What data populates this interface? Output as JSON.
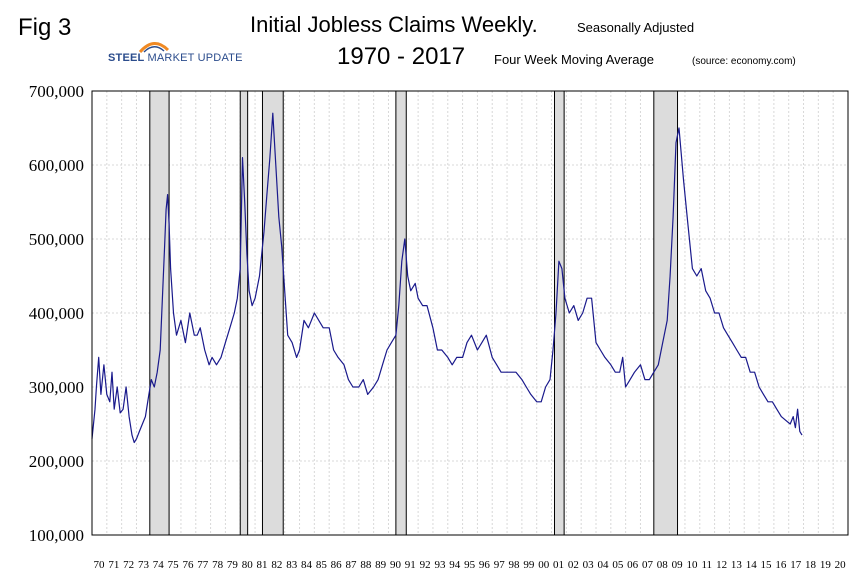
{
  "header": {
    "fig_label": "Fig 3",
    "title": "Initial Jobless Claims Weekly.",
    "title_note": "Seasonally Adjusted",
    "years": "1970 - 2017",
    "subtitle": "Four Week Moving Average",
    "source": "(source: economy.com)",
    "logo": {
      "text_bold": "STEEL",
      "text_rest": "MARKET UPDATE",
      "colors": [
        "#2b4c8c",
        "#f08a24"
      ]
    }
  },
  "chart_data": {
    "type": "line",
    "title": "Initial Jobless Claims Weekly.",
    "subtitle": "Four Week Moving Average",
    "xlabel": "",
    "ylabel": "",
    "xlim": [
      1970,
      2021
    ],
    "ylim": [
      100000,
      700000
    ],
    "y_ticks": [
      100000,
      200000,
      300000,
      400000,
      500000,
      600000,
      700000
    ],
    "y_tick_labels": [
      "100,000",
      "200,000",
      "300,000",
      "400,000",
      "500,000",
      "600,000",
      "700,000"
    ],
    "x_tick_labels": [
      "70",
      "71",
      "72",
      "73",
      "74",
      "75",
      "76",
      "77",
      "78",
      "79",
      "80",
      "81",
      "82",
      "83",
      "84",
      "85",
      "86",
      "87",
      "88",
      "89",
      "90",
      "91",
      "92",
      "93",
      "94",
      "95",
      "96",
      "97",
      "98",
      "99",
      "00",
      "01",
      "02",
      "03",
      "04",
      "05",
      "06",
      "07",
      "08",
      "09",
      "10",
      "11",
      "12",
      "13",
      "14",
      "15",
      "16",
      "17",
      "18",
      "19",
      "20"
    ],
    "grid": true,
    "line_color": "#1a1a8c",
    "recession_color": "#dcdcdc",
    "recessions": [
      [
        1973.9,
        1975.2
      ],
      [
        1980.0,
        1980.5
      ],
      [
        1981.5,
        1982.9
      ],
      [
        1990.5,
        1991.2
      ],
      [
        2001.2,
        2001.85
      ],
      [
        2007.9,
        2009.5
      ]
    ],
    "series": [
      {
        "name": "",
        "x": [
          1970.0,
          1970.2,
          1970.3,
          1970.45,
          1970.6,
          1970.8,
          1971.0,
          1971.2,
          1971.35,
          1971.5,
          1971.7,
          1971.9,
          1972.1,
          1972.3,
          1972.5,
          1972.7,
          1972.85,
          1973.0,
          1973.2,
          1973.4,
          1973.6,
          1973.8,
          1974.0,
          1974.2,
          1974.4,
          1974.6,
          1974.75,
          1974.9,
          1975.0,
          1975.1,
          1975.2,
          1975.3,
          1975.5,
          1975.7,
          1976.0,
          1976.3,
          1976.6,
          1976.9,
          1977.1,
          1977.3,
          1977.6,
          1977.9,
          1978.1,
          1978.4,
          1978.7,
          1979.0,
          1979.3,
          1979.6,
          1979.8,
          1980.0,
          1980.15,
          1980.3,
          1980.45,
          1980.6,
          1980.8,
          1981.0,
          1981.3,
          1981.6,
          1981.8,
          1982.0,
          1982.2,
          1982.4,
          1982.6,
          1982.8,
          1983.0,
          1983.2,
          1983.5,
          1983.8,
          1984.0,
          1984.3,
          1984.6,
          1985.0,
          1985.3,
          1985.6,
          1986.0,
          1986.3,
          1986.6,
          1987.0,
          1987.3,
          1987.6,
          1988.0,
          1988.3,
          1988.6,
          1989.0,
          1989.3,
          1989.6,
          1989.9,
          1990.2,
          1990.5,
          1990.7,
          1990.9,
          1991.1,
          1991.3,
          1991.5,
          1991.8,
          1992.0,
          1992.3,
          1992.6,
          1993.0,
          1993.3,
          1993.6,
          1994.0,
          1994.3,
          1994.6,
          1995.0,
          1995.3,
          1995.6,
          1996.0,
          1996.3,
          1996.6,
          1997.0,
          1997.3,
          1997.6,
          1998.0,
          1998.3,
          1998.6,
          1999.0,
          1999.3,
          1999.6,
          2000.0,
          2000.3,
          2000.6,
          2000.9,
          2001.1,
          2001.3,
          2001.5,
          2001.7,
          2001.9,
          2002.2,
          2002.5,
          2002.8,
          2003.1,
          2003.4,
          2003.7,
          2004.0,
          2004.3,
          2004.6,
          2005.0,
          2005.3,
          2005.6,
          2005.8,
          2006.0,
          2006.3,
          2006.6,
          2007.0,
          2007.3,
          2007.6,
          2007.9,
          2008.2,
          2008.5,
          2008.8,
          2009.0,
          2009.2,
          2009.4,
          2009.6,
          2009.9,
          2010.2,
          2010.5,
          2010.8,
          2011.1,
          2011.4,
          2011.7,
          2012.0,
          2012.3,
          2012.6,
          2012.9,
          2013.2,
          2013.5,
          2013.8,
          2014.1,
          2014.4,
          2014.7,
          2015.0,
          2015.3,
          2015.6,
          2015.9,
          2016.2,
          2016.5,
          2016.8,
          2017.1,
          2017.3,
          2017.45,
          2017.6,
          2017.75,
          2017.9
        ],
        "values": [
          230000,
          270000,
          300000,
          340000,
          290000,
          330000,
          290000,
          280000,
          320000,
          270000,
          300000,
          265000,
          270000,
          300000,
          260000,
          235000,
          225000,
          230000,
          240000,
          250000,
          260000,
          285000,
          310000,
          300000,
          320000,
          350000,
          420000,
          490000,
          540000,
          560000,
          520000,
          460000,
          400000,
          370000,
          390000,
          360000,
          400000,
          370000,
          370000,
          380000,
          350000,
          330000,
          340000,
          330000,
          340000,
          360000,
          380000,
          400000,
          420000,
          460000,
          610000,
          550000,
          480000,
          430000,
          410000,
          420000,
          450000,
          510000,
          560000,
          610000,
          670000,
          600000,
          530000,
          490000,
          430000,
          370000,
          360000,
          340000,
          350000,
          390000,
          380000,
          400000,
          390000,
          380000,
          380000,
          350000,
          340000,
          330000,
          310000,
          300000,
          300000,
          310000,
          290000,
          300000,
          310000,
          330000,
          350000,
          360000,
          370000,
          410000,
          470000,
          500000,
          450000,
          430000,
          440000,
          420000,
          410000,
          410000,
          380000,
          350000,
          350000,
          340000,
          330000,
          340000,
          340000,
          360000,
          370000,
          350000,
          360000,
          370000,
          340000,
          330000,
          320000,
          320000,
          320000,
          320000,
          310000,
          300000,
          290000,
          280000,
          280000,
          300000,
          310000,
          350000,
          400000,
          470000,
          460000,
          420000,
          400000,
          410000,
          390000,
          400000,
          420000,
          420000,
          360000,
          350000,
          340000,
          330000,
          320000,
          320000,
          340000,
          300000,
          310000,
          320000,
          330000,
          310000,
          310000,
          320000,
          330000,
          360000,
          390000,
          450000,
          530000,
          630000,
          650000,
          580000,
          520000,
          460000,
          450000,
          460000,
          430000,
          420000,
          400000,
          400000,
          380000,
          370000,
          360000,
          350000,
          340000,
          340000,
          320000,
          320000,
          300000,
          290000,
          280000,
          280000,
          270000,
          260000,
          255000,
          250000,
          260000,
          245000,
          270000,
          240000,
          235000
        ]
      }
    ]
  }
}
